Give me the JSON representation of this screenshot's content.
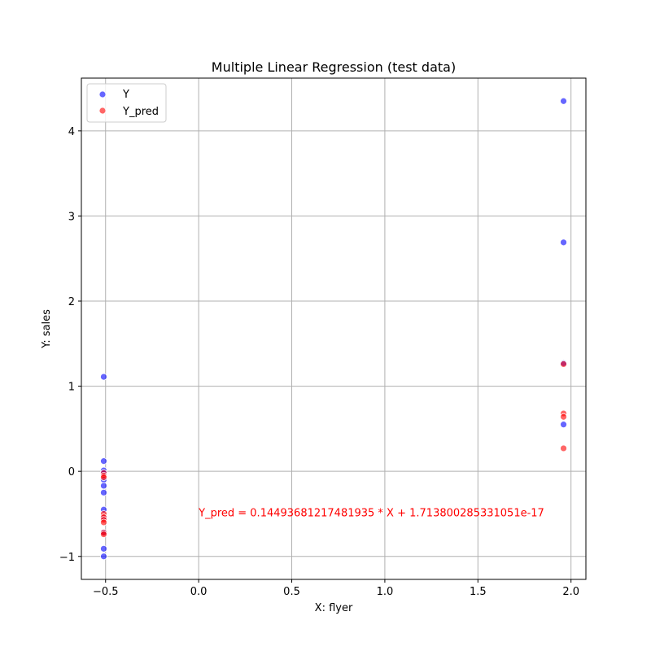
{
  "chart_data": {
    "type": "scatter",
    "title": "Multiple Linear Regression (test data)",
    "xlabel": "X: flyer",
    "ylabel": "Y: sales",
    "xlim": [
      -0.63,
      2.08
    ],
    "ylim": [
      -1.27,
      4.62
    ],
    "xticks": [
      -0.5,
      0.0,
      0.5,
      1.0,
      1.5,
      2.0
    ],
    "xtick_labels": [
      "−0.5",
      "0.0",
      "0.5",
      "1.0",
      "1.5",
      "2.0"
    ],
    "yticks": [
      -1,
      0,
      1,
      2,
      3,
      4
    ],
    "ytick_labels": [
      "−1",
      "0",
      "1",
      "2",
      "3",
      "4"
    ],
    "grid": true,
    "legend_position": "upper-left",
    "series": [
      {
        "name": "Y",
        "color": "#0000ff",
        "points": [
          {
            "x": -0.51,
            "y": 1.11
          },
          {
            "x": -0.51,
            "y": 0.12
          },
          {
            "x": -0.51,
            "y": 0.01
          },
          {
            "x": -0.51,
            "y": -0.02
          },
          {
            "x": -0.51,
            "y": -0.1
          },
          {
            "x": -0.51,
            "y": -0.17
          },
          {
            "x": -0.51,
            "y": -0.25
          },
          {
            "x": -0.51,
            "y": -0.45
          },
          {
            "x": -0.51,
            "y": -0.55
          },
          {
            "x": -0.51,
            "y": -0.72
          },
          {
            "x": -0.51,
            "y": -0.91
          },
          {
            "x": -0.51,
            "y": -1.0
          },
          {
            "x": 1.96,
            "y": 4.35
          },
          {
            "x": 1.96,
            "y": 2.69
          },
          {
            "x": 1.96,
            "y": 1.27
          },
          {
            "x": 1.96,
            "y": 0.55
          }
        ]
      },
      {
        "name": "Y_pred",
        "color": "#ff0000",
        "points": [
          {
            "x": -0.51,
            "y": -0.02
          },
          {
            "x": -0.51,
            "y": -0.05
          },
          {
            "x": -0.51,
            "y": -0.07
          },
          {
            "x": -0.51,
            "y": -0.5
          },
          {
            "x": -0.51,
            "y": -0.54
          },
          {
            "x": -0.51,
            "y": -0.57
          },
          {
            "x": -0.51,
            "y": -0.6
          },
          {
            "x": -0.51,
            "y": -0.72
          },
          {
            "x": -0.51,
            "y": -0.74
          },
          {
            "x": 1.96,
            "y": 1.26
          },
          {
            "x": 1.96,
            "y": 0.68
          },
          {
            "x": 1.96,
            "y": 0.64
          },
          {
            "x": 1.96,
            "y": 0.27
          }
        ]
      }
    ],
    "annotation": {
      "text": "Y_pred = 0.14493681217481935 * X + 1.713800285331051e-17",
      "x": 0.0,
      "y": -0.53,
      "color": "#ff0000"
    }
  }
}
